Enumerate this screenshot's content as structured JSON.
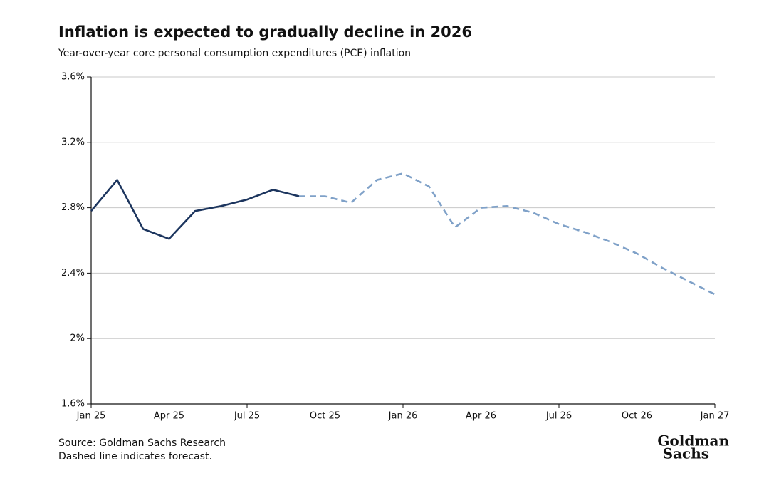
{
  "chart_data": {
    "type": "line",
    "title": "Inflation is expected to gradually decline in 2026",
    "subtitle": "Year-over-year core personal consumption expenditures (PCE) inflation",
    "categories": [
      "Jan 25",
      null,
      null,
      "Apr 25",
      null,
      null,
      "Jul 25",
      null,
      null,
      "Oct 25",
      null,
      null,
      "Jan 26",
      null,
      null,
      "Apr 26",
      null,
      null,
      "Jul 26",
      null,
      null,
      "Oct 26",
      null,
      null,
      "Jan 27"
    ],
    "series": [
      {
        "color": "#1c355e",
        "dashed": false,
        "values": [
          2.78,
          2.97,
          2.67,
          2.61,
          2.78,
          2.81,
          2.85,
          2.91,
          2.87,
          null,
          null,
          null,
          null,
          null,
          null,
          null,
          null,
          null,
          null,
          null,
          null,
          null,
          null,
          null,
          null
        ]
      },
      {
        "color": "#7fa1c8",
        "dashed": true,
        "values": [
          null,
          null,
          null,
          null,
          null,
          null,
          null,
          null,
          2.87,
          2.87,
          2.83,
          2.97,
          3.01,
          2.93,
          2.68,
          2.8,
          2.81,
          2.77,
          2.7,
          2.65,
          2.59,
          2.52,
          2.43,
          2.35,
          2.27
        ]
      }
    ],
    "ylim": [
      1.6,
      3.6
    ],
    "yticks": [
      {
        "value": 1.6,
        "label": "1.6%"
      },
      {
        "value": 2,
        "label": "2%"
      },
      {
        "value": 2.4,
        "label": "2.4%"
      },
      {
        "value": 2.8,
        "label": "2.8%"
      },
      {
        "value": 3.2,
        "label": "3.2%"
      },
      {
        "value": 3.6,
        "label": "3.6%"
      }
    ],
    "grid": true,
    "source": "Source: Goldman Sachs Research",
    "note": "Dashed line indicates forecast.",
    "logo": [
      "Goldman",
      "Sachs"
    ]
  }
}
